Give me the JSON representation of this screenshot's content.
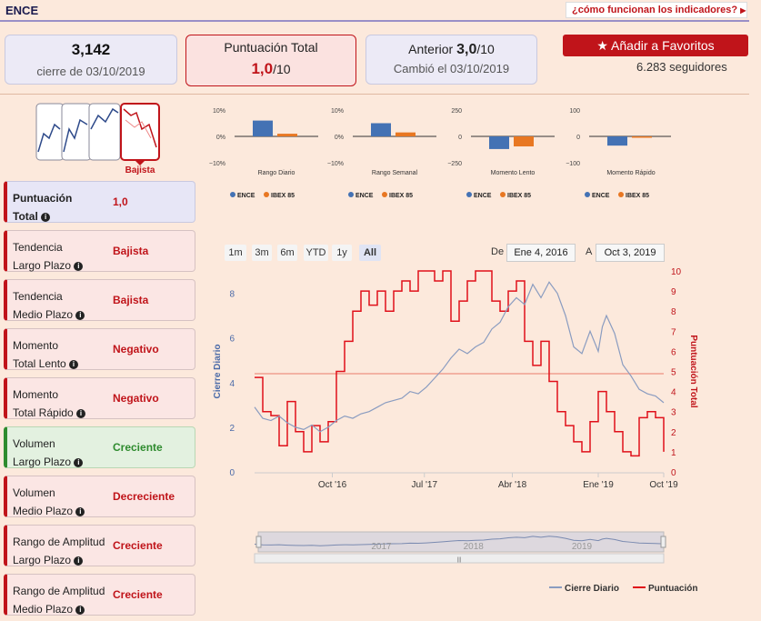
{
  "header": {
    "ticker": "ENCE",
    "help_link": "¿cómo funcionan los indicadores?"
  },
  "cards": {
    "price": {
      "value": "3,142",
      "subtitle": "cierre de 03/10/2019"
    },
    "score": {
      "title": "Puntuación Total",
      "value": "1,0",
      "suffix": "/10"
    },
    "previous": {
      "label": "Anterior",
      "value": "3,0",
      "suffix": "/10",
      "subtitle": "Cambió el 03/10/2019"
    }
  },
  "favorites": {
    "button_label": "Añadir a Favoritos",
    "followers": "6.283 seguidores"
  },
  "trend_widget": {
    "selected_label": "Bajista"
  },
  "indicators": [
    {
      "line1": "Puntuación",
      "line2": "Total",
      "value": "1,0",
      "style": "blue",
      "value_color": "red"
    },
    {
      "line1": "Tendencia",
      "line2": "Largo Plazo",
      "value": "Bajista",
      "style": "red",
      "value_color": "red"
    },
    {
      "line1": "Tendencia",
      "line2": "Medio Plazo",
      "value": "Bajista",
      "style": "red",
      "value_color": "red"
    },
    {
      "line1": "Momento",
      "line2": "Total Lento",
      "value": "Negativo",
      "style": "red",
      "value_color": "red"
    },
    {
      "line1": "Momento",
      "line2": "Total Rápido",
      "value": "Negativo",
      "style": "red",
      "value_color": "red"
    },
    {
      "line1": "Volumen",
      "line2": "Largo Plazo",
      "value": "Creciente",
      "style": "green",
      "value_color": "green"
    },
    {
      "line1": "Volumen",
      "line2": "Medio Plazo",
      "value": "Decreciente",
      "style": "red",
      "value_color": "red"
    },
    {
      "line1": "Rango de Amplitud",
      "line2": "Largo Plazo",
      "value": "Creciente",
      "style": "red",
      "value_color": "red"
    },
    {
      "line1": "Rango de Amplitud",
      "line2": "Medio Plazo",
      "value": "Creciente",
      "style": "red",
      "value_color": "red"
    }
  ],
  "mini_charts": [
    {
      "xlabel": "Rango Diario",
      "yticks": [
        "10%",
        "0%",
        "−10%"
      ],
      "ylim": [
        -10,
        10
      ],
      "ence": 6,
      "ibex": 1
    },
    {
      "xlabel": "Rango Semanal",
      "yticks": [
        "10%",
        "0%",
        "−10%"
      ],
      "ylim": [
        -10,
        10
      ],
      "ence": 5,
      "ibex": 1.5
    },
    {
      "xlabel": "Momento Lento",
      "yticks": [
        "250",
        "0",
        "−250"
      ],
      "ylim": [
        -250,
        250
      ],
      "ence": -120,
      "ibex": -95
    },
    {
      "xlabel": "Momento Rápido",
      "yticks": [
        "100",
        "0",
        "−100"
      ],
      "ylim": [
        -100,
        100
      ],
      "ence": -35,
      "ibex": 0
    }
  ],
  "mini_legend": {
    "ence": "ENCE",
    "ibex": "IBEX 85"
  },
  "range_selector": {
    "buttons": [
      "1m",
      "3m",
      "6m",
      "YTD",
      "1y",
      "All"
    ],
    "active": "All"
  },
  "date_range": {
    "from_label": "De",
    "from": "Ene 4, 2016",
    "to_label": "A",
    "to": "Oct 3, 2019"
  },
  "chart_data": {
    "type": "line",
    "y_left_label": "Cierre Diario",
    "y_right_label": "Puntuación Total",
    "y_left_ticks": [
      "0",
      "2",
      "4",
      "6",
      "8"
    ],
    "y_left_lim": [
      0,
      9
    ],
    "y_right_ticks": [
      "0",
      "1",
      "2",
      "3",
      "4",
      "5",
      "6",
      "7",
      "8",
      "9",
      "10"
    ],
    "y_right_lim": [
      0,
      10
    ],
    "x_ticks": [
      "Oct '16",
      "Jul '17",
      "Abr '18",
      "Ene '19",
      "Oct '19"
    ],
    "x_tick_pos": [
      0.19,
      0.415,
      0.63,
      0.84,
      1.0
    ],
    "reference_line_left": 4.4,
    "cierre_diario": [
      [
        0.0,
        2.9
      ],
      [
        0.02,
        2.4
      ],
      [
        0.04,
        2.3
      ],
      [
        0.06,
        2.5
      ],
      [
        0.08,
        2.2
      ],
      [
        0.1,
        2.0
      ],
      [
        0.12,
        1.9
      ],
      [
        0.14,
        2.1
      ],
      [
        0.16,
        1.8
      ],
      [
        0.18,
        2.0
      ],
      [
        0.2,
        2.3
      ],
      [
        0.22,
        2.5
      ],
      [
        0.24,
        2.4
      ],
      [
        0.26,
        2.6
      ],
      [
        0.28,
        2.7
      ],
      [
        0.3,
        2.9
      ],
      [
        0.32,
        3.1
      ],
      [
        0.34,
        3.2
      ],
      [
        0.36,
        3.3
      ],
      [
        0.38,
        3.6
      ],
      [
        0.4,
        3.5
      ],
      [
        0.42,
        3.8
      ],
      [
        0.44,
        4.2
      ],
      [
        0.46,
        4.6
      ],
      [
        0.48,
        5.1
      ],
      [
        0.5,
        5.5
      ],
      [
        0.52,
        5.3
      ],
      [
        0.54,
        5.6
      ],
      [
        0.56,
        5.8
      ],
      [
        0.58,
        6.4
      ],
      [
        0.6,
        6.7
      ],
      [
        0.62,
        7.4
      ],
      [
        0.64,
        7.8
      ],
      [
        0.66,
        7.5
      ],
      [
        0.68,
        8.4
      ],
      [
        0.7,
        7.8
      ],
      [
        0.72,
        8.5
      ],
      [
        0.74,
        8.0
      ],
      [
        0.76,
        7.0
      ],
      [
        0.78,
        5.6
      ],
      [
        0.8,
        5.3
      ],
      [
        0.82,
        6.3
      ],
      [
        0.84,
        5.4
      ],
      [
        0.85,
        6.5
      ],
      [
        0.86,
        7.0
      ],
      [
        0.88,
        6.2
      ],
      [
        0.9,
        4.8
      ],
      [
        0.92,
        4.3
      ],
      [
        0.94,
        3.7
      ],
      [
        0.96,
        3.5
      ],
      [
        0.98,
        3.4
      ],
      [
        1.0,
        3.1
      ]
    ],
    "puntuacion": [
      [
        0.0,
        4.7
      ],
      [
        0.02,
        3.0
      ],
      [
        0.04,
        2.8
      ],
      [
        0.06,
        1.3
      ],
      [
        0.08,
        3.5
      ],
      [
        0.1,
        2.0
      ],
      [
        0.12,
        1.0
      ],
      [
        0.14,
        2.3
      ],
      [
        0.16,
        1.5
      ],
      [
        0.18,
        2.5
      ],
      [
        0.2,
        5.0
      ],
      [
        0.22,
        6.5
      ],
      [
        0.24,
        8.0
      ],
      [
        0.26,
        9.0
      ],
      [
        0.28,
        8.3
      ],
      [
        0.3,
        9.0
      ],
      [
        0.32,
        8.0
      ],
      [
        0.34,
        9.0
      ],
      [
        0.36,
        9.5
      ],
      [
        0.38,
        9.0
      ],
      [
        0.4,
        10
      ],
      [
        0.42,
        10
      ],
      [
        0.44,
        9.5
      ],
      [
        0.46,
        10
      ],
      [
        0.48,
        7.5
      ],
      [
        0.5,
        8.5
      ],
      [
        0.52,
        9.5
      ],
      [
        0.54,
        10
      ],
      [
        0.56,
        10
      ],
      [
        0.58,
        8.5
      ],
      [
        0.6,
        8.0
      ],
      [
        0.62,
        9.0
      ],
      [
        0.64,
        9.5
      ],
      [
        0.66,
        6.5
      ],
      [
        0.68,
        5.3
      ],
      [
        0.7,
        6.5
      ],
      [
        0.72,
        4.5
      ],
      [
        0.74,
        3.0
      ],
      [
        0.76,
        2.3
      ],
      [
        0.78,
        1.5
      ],
      [
        0.8,
        1.0
      ],
      [
        0.82,
        2.5
      ],
      [
        0.84,
        4.0
      ],
      [
        0.86,
        3.0
      ],
      [
        0.88,
        2.0
      ],
      [
        0.9,
        1.0
      ],
      [
        0.92,
        0.8
      ],
      [
        0.94,
        2.7
      ],
      [
        0.96,
        3.0
      ],
      [
        0.98,
        2.7
      ],
      [
        1.0,
        1.0
      ]
    ],
    "navigator_labels": [
      "2017",
      "2018",
      "2019"
    ],
    "legend": {
      "series1": "Cierre Diario",
      "series2": "Puntuación"
    }
  },
  "colors": {
    "brand_red": "#c0141a",
    "ence_blue": "#4472b4",
    "ibex_orange": "#e87722",
    "line_gray": "#8a9cc0"
  }
}
